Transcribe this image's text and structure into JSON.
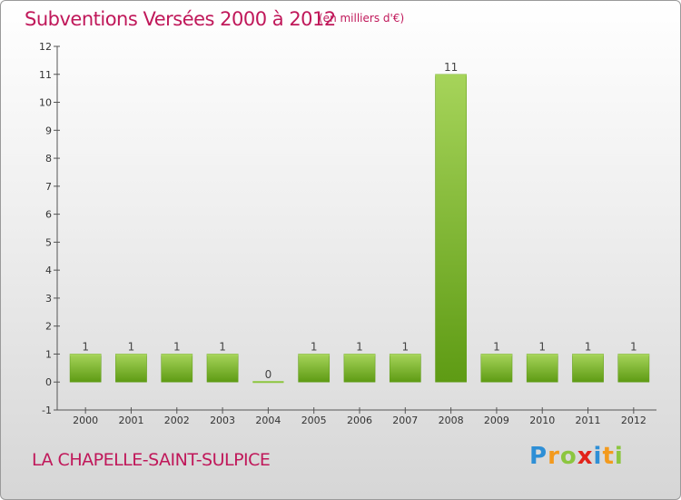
{
  "title": "Subventions Versées 2000 à 2012",
  "unit": "(en milliers d'€)",
  "commune": "LA CHAPELLE-SAINT-SULPICE",
  "logo": {
    "letters": [
      "P",
      "r",
      "o",
      "x",
      "i",
      "t",
      "i"
    ],
    "colors": [
      "#2e8fd6",
      "#f39a1d",
      "#8cc63f",
      "#e2231a",
      "#2e8fd6",
      "#f39a1d",
      "#8cc63f"
    ]
  },
  "colors": {
    "bar_light": "#a6d45a",
    "bar_dark": "#5e9b14",
    "zero_bar": "#8cc63f"
  },
  "chart_data": {
    "type": "bar",
    "categories": [
      "2000",
      "2001",
      "2002",
      "2003",
      "2004",
      "2005",
      "2006",
      "2007",
      "2008",
      "2009",
      "2010",
      "2011",
      "2012"
    ],
    "values": [
      1,
      1,
      1,
      1,
      0,
      1,
      1,
      1,
      11,
      1,
      1,
      1,
      1
    ],
    "value_labels": [
      "1",
      "1",
      "1",
      "1",
      "0",
      "1",
      "1",
      "1",
      "11",
      "1",
      "1",
      "1",
      "1"
    ],
    "ylim": [
      -1,
      12
    ],
    "yticks": [
      -1,
      0,
      1,
      2,
      3,
      4,
      5,
      6,
      7,
      8,
      9,
      10,
      11,
      12
    ],
    "grid": false
  }
}
